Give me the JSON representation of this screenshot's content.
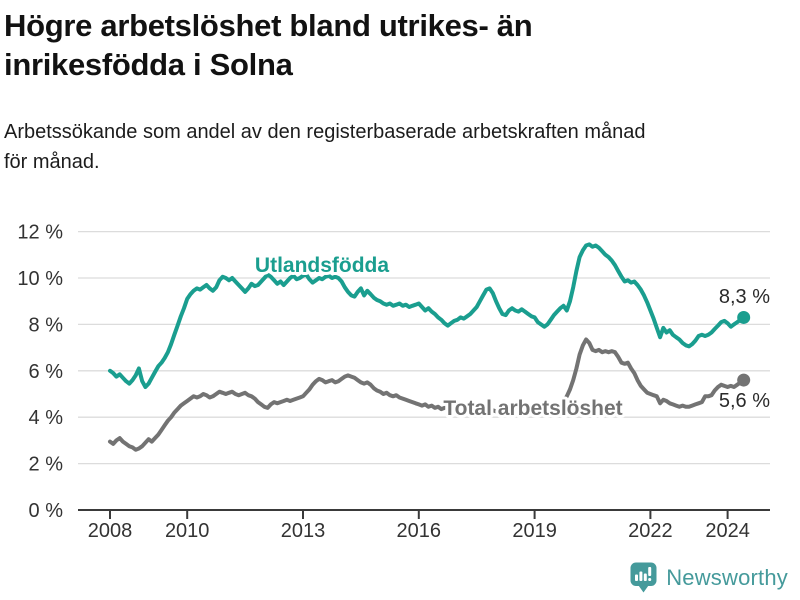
{
  "header": {
    "title_lines": [
      "Högre arbetslöshet bland utrikes- än",
      "inrikesfödda i Solna"
    ],
    "subtitle_lines": [
      "Arbetssökande som andel av den registerbaserade arbetskraften månad",
      "för månad."
    ]
  },
  "footer": {
    "brand": "Newsworthy",
    "logo_icon": "chart-speech-bubble-icon",
    "brand_color": "#459a9b"
  },
  "chart_data": {
    "type": "line",
    "title": "Högre arbetslöshet bland utrikes- än inrikesfödda i Solna",
    "subtitle": "Arbetssökande som andel av den registerbaserade arbetskraften månad för månad.",
    "x_unit": "year-month",
    "x_start_year": 2008,
    "x_step_months": 1,
    "xlim": [
      2008,
      2024.5
    ],
    "ylim": [
      0,
      12
    ],
    "grid": "horizontal",
    "y_ticks": [
      0,
      2,
      4,
      6,
      8,
      10,
      12
    ],
    "y_tick_labels": [
      "0 %",
      "2 %",
      "4 %",
      "6 %",
      "8 %",
      "10 %",
      "12 %"
    ],
    "x_tick_years": [
      2008,
      2010,
      2013,
      2016,
      2019,
      2022,
      2024
    ],
    "x_tick_labels": [
      "2008",
      "2010",
      "2013",
      "2016",
      "2019",
      "2022",
      "2024"
    ],
    "axis_color": "#3a3a3a",
    "grid_color": "#dcdcdc",
    "label_color": "#333333",
    "end_label_color": "#2a2a2a",
    "legend_position": "inline-labels",
    "series": [
      {
        "name": "Utlandsfödda",
        "color": "#1a9e8f",
        "end_label": "8,3 %",
        "end_value": 8.3,
        "values": [
          6.0,
          5.9,
          5.75,
          5.85,
          5.7,
          5.55,
          5.45,
          5.6,
          5.8,
          6.1,
          5.55,
          5.3,
          5.45,
          5.7,
          5.95,
          6.2,
          6.35,
          6.55,
          6.8,
          7.15,
          7.55,
          7.95,
          8.35,
          8.7,
          9.1,
          9.3,
          9.45,
          9.55,
          9.5,
          9.6,
          9.7,
          9.55,
          9.45,
          9.6,
          9.9,
          10.05,
          10.0,
          9.9,
          10.0,
          9.85,
          9.7,
          9.55,
          9.4,
          9.55,
          9.75,
          9.65,
          9.7,
          9.85,
          10.0,
          10.15,
          10.05,
          9.9,
          9.75,
          9.85,
          9.7,
          9.85,
          10.0,
          10.1,
          9.95,
          10.0,
          10.1,
          10.15,
          9.95,
          9.8,
          9.9,
          10.0,
          9.95,
          10.05,
          10.1,
          10.0,
          10.05,
          10.0,
          9.85,
          9.6,
          9.4,
          9.25,
          9.2,
          9.4,
          9.55,
          9.25,
          9.45,
          9.3,
          9.15,
          9.05,
          9.0,
          8.9,
          8.85,
          8.9,
          8.8,
          8.85,
          8.9,
          8.8,
          8.85,
          8.75,
          8.8,
          8.85,
          8.9,
          8.75,
          8.6,
          8.7,
          8.55,
          8.45,
          8.3,
          8.2,
          8.05,
          7.95,
          8.05,
          8.15,
          8.2,
          8.3,
          8.25,
          8.35,
          8.45,
          8.6,
          8.75,
          9.0,
          9.25,
          9.5,
          9.55,
          9.35,
          9.0,
          8.7,
          8.45,
          8.4,
          8.6,
          8.7,
          8.6,
          8.55,
          8.65,
          8.55,
          8.45,
          8.35,
          8.3,
          8.1,
          8.0,
          7.9,
          8.0,
          8.2,
          8.4,
          8.55,
          8.7,
          8.8,
          8.6,
          9.0,
          9.6,
          10.3,
          10.9,
          11.2,
          11.4,
          11.45,
          11.35,
          11.4,
          11.3,
          11.15,
          11.0,
          10.9,
          10.75,
          10.55,
          10.3,
          10.05,
          9.85,
          9.9,
          9.8,
          9.85,
          9.7,
          9.5,
          9.25,
          8.95,
          8.6,
          8.25,
          7.85,
          7.45,
          7.85,
          7.65,
          7.75,
          7.55,
          7.45,
          7.35,
          7.2,
          7.1,
          7.05,
          7.15,
          7.3,
          7.5,
          7.55,
          7.5,
          7.55,
          7.65,
          7.8,
          7.95,
          8.1,
          8.15,
          8.05,
          7.9,
          8.0,
          8.1,
          8.2,
          8.3
        ]
      },
      {
        "name": "Total arbetslöshet",
        "color": "#737373",
        "end_label": "5,6 %",
        "end_value": 5.6,
        "values": [
          2.95,
          2.85,
          3.0,
          3.1,
          2.95,
          2.85,
          2.75,
          2.7,
          2.6,
          2.65,
          2.75,
          2.9,
          3.05,
          2.95,
          3.1,
          3.25,
          3.45,
          3.65,
          3.85,
          4.0,
          4.2,
          4.35,
          4.5,
          4.6,
          4.7,
          4.8,
          4.9,
          4.85,
          4.9,
          5.0,
          4.95,
          4.85,
          4.9,
          5.0,
          5.1,
          5.05,
          5.0,
          5.05,
          5.1,
          5.0,
          4.95,
          5.0,
          5.05,
          4.95,
          4.9,
          4.8,
          4.65,
          4.55,
          4.45,
          4.4,
          4.55,
          4.65,
          4.6,
          4.65,
          4.7,
          4.75,
          4.7,
          4.75,
          4.8,
          4.85,
          4.9,
          5.05,
          5.2,
          5.4,
          5.55,
          5.65,
          5.6,
          5.5,
          5.55,
          5.6,
          5.5,
          5.55,
          5.65,
          5.75,
          5.8,
          5.75,
          5.7,
          5.6,
          5.5,
          5.45,
          5.5,
          5.4,
          5.25,
          5.15,
          5.1,
          5.0,
          5.05,
          4.95,
          4.9,
          4.95,
          4.85,
          4.8,
          4.75,
          4.7,
          4.65,
          4.6,
          4.55,
          4.5,
          4.55,
          4.45,
          4.5,
          4.4,
          4.45,
          4.35,
          4.4,
          4.45,
          4.4,
          4.45,
          4.4,
          4.35,
          4.4,
          4.3,
          4.35,
          4.3,
          4.25,
          4.3,
          4.35,
          4.3,
          4.25,
          4.3,
          4.25,
          4.3,
          4.25,
          4.2,
          4.25,
          4.3,
          4.25,
          4.3,
          4.35,
          4.3,
          4.35,
          4.3,
          4.3,
          4.25,
          4.3,
          4.35,
          4.3,
          4.35,
          4.4,
          4.45,
          4.5,
          4.65,
          4.9,
          5.2,
          5.6,
          6.1,
          6.7,
          7.1,
          7.35,
          7.2,
          6.9,
          6.85,
          6.9,
          6.8,
          6.85,
          6.8,
          6.85,
          6.8,
          6.6,
          6.35,
          6.3,
          6.35,
          6.1,
          5.9,
          5.6,
          5.35,
          5.2,
          5.05,
          5.0,
          4.95,
          4.9,
          4.6,
          4.75,
          4.7,
          4.6,
          4.55,
          4.5,
          4.45,
          4.5,
          4.45,
          4.45,
          4.5,
          4.55,
          4.6,
          4.65,
          4.9,
          4.9,
          4.95,
          5.15,
          5.3,
          5.4,
          5.35,
          5.3,
          5.35,
          5.3,
          5.4,
          5.5,
          5.6
        ]
      }
    ]
  }
}
